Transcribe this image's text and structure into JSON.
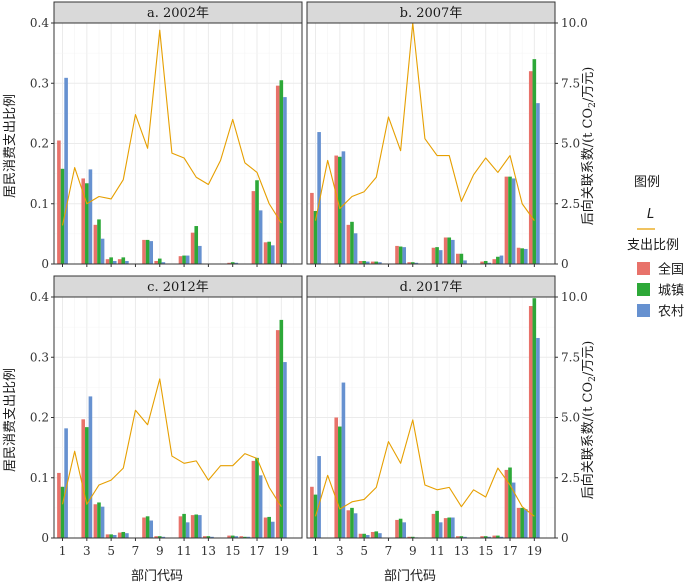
{
  "chart_data": {
    "type": "bar",
    "x_axis_title": "部门代码",
    "y_left_title": "居民消费支出比例",
    "y_right_title": "后向关联系数/(t CO",
    "y_right_title_sub": "2",
    "y_right_title_tail": "/万元)",
    "x_ticks": [
      1,
      3,
      5,
      7,
      9,
      11,
      13,
      15,
      17,
      19
    ],
    "x_range": [
      0.3,
      20.7
    ],
    "y_left_ticks": [
      "0",
      "0.1",
      "0.2",
      "0.3",
      "0.4"
    ],
    "y_left_range": [
      0,
      0.4
    ],
    "y_right_ticks": [
      "0",
      "2.5",
      "5.0",
      "7.5",
      "10.0"
    ],
    "y_right_range": [
      0,
      10
    ],
    "grid": true,
    "legend": {
      "position": "right",
      "line_title": "图例",
      "line_label": "L",
      "line_color": "#E69F00",
      "bar_title": "支出比例",
      "bar_series": [
        {
          "name": "全国",
          "color": "#E8726A"
        },
        {
          "name": "城镇",
          "color": "#2DA838"
        },
        {
          "name": "农村",
          "color": "#6691D0"
        }
      ]
    },
    "panels": [
      {
        "title": "a. 2002年",
        "bars": {
          "全国": [
            0.205,
            0,
            0.142,
            0.065,
            0.008,
            0.008,
            0,
            0.04,
            0.005,
            0,
            0.013,
            0.052,
            0,
            0,
            0.002,
            0,
            0.121,
            0.036,
            0.296
          ],
          "城镇": [
            0.158,
            0,
            0.134,
            0.074,
            0.011,
            0.011,
            0,
            0.04,
            0.009,
            0,
            0.014,
            0.063,
            0,
            0,
            0.003,
            0,
            0.139,
            0.037,
            0.305
          ],
          "农村": [
            0.309,
            0,
            0.157,
            0.042,
            0.005,
            0.005,
            0,
            0.038,
            0.003,
            0,
            0.014,
            0.03,
            0,
            0,
            0.002,
            0,
            0.089,
            0.031,
            0.277
          ]
        },
        "line": [
          1.6,
          4.0,
          2.5,
          2.8,
          2.7,
          3.5,
          6.2,
          4.8,
          9.7,
          4.6,
          4.4,
          3.6,
          3.3,
          4.3,
          6.0,
          4.2,
          3.8,
          2.5,
          1.7
        ]
      },
      {
        "title": "b. 2007年",
        "bars": {
          "全国": [
            0.118,
            0,
            0.18,
            0.065,
            0.005,
            0.004,
            0,
            0.03,
            0.003,
            0,
            0.027,
            0.044,
            0.017,
            0,
            0.004,
            0.008,
            0.145,
            0.027,
            0.32
          ],
          "城镇": [
            0.088,
            0,
            0.178,
            0.07,
            0.005,
            0.004,
            0,
            0.029,
            0.003,
            0,
            0.028,
            0.044,
            0.017,
            0,
            0.005,
            0.012,
            0.145,
            0.026,
            0.34
          ],
          "农村": [
            0.219,
            0,
            0.187,
            0.051,
            0.004,
            0.003,
            0,
            0.028,
            0.002,
            0,
            0.023,
            0.04,
            0.006,
            0,
            0.002,
            0.014,
            0.142,
            0.025,
            0.267
          ]
        },
        "line": [
          1.8,
          4.3,
          2.3,
          2.8,
          3.0,
          3.6,
          6.1,
          4.7,
          10.0,
          5.2,
          4.5,
          4.5,
          2.6,
          3.7,
          4.4,
          3.8,
          4.5,
          2.5,
          1.8
        ]
      },
      {
        "title": "c. 2012年",
        "bars": {
          "全国": [
            0.108,
            0,
            0.197,
            0.056,
            0.006,
            0.009,
            0,
            0.034,
            0.003,
            0,
            0.036,
            0.038,
            0.003,
            0,
            0.004,
            0.003,
            0.128,
            0.034,
            0.345
          ],
          "城镇": [
            0.085,
            0,
            0.184,
            0.059,
            0.006,
            0.01,
            0,
            0.036,
            0.003,
            0,
            0.04,
            0.039,
            0.003,
            0,
            0.004,
            0.002,
            0.133,
            0.035,
            0.362
          ],
          "农村": [
            0.182,
            0,
            0.235,
            0.052,
            0.005,
            0.008,
            0,
            0.029,
            0.002,
            0,
            0.026,
            0.038,
            0.002,
            0,
            0.003,
            0.002,
            0.104,
            0.027,
            0.292
          ]
        },
        "line": [
          1.4,
          3.6,
          1.4,
          2.2,
          2.4,
          2.9,
          5.3,
          4.7,
          6.6,
          3.4,
          3.1,
          3.2,
          2.4,
          3.0,
          3.0,
          3.5,
          3.3,
          2.1,
          1.3
        ]
      },
      {
        "title": "d. 2017年",
        "bars": {
          "全国": [
            0.085,
            0,
            0.2,
            0.046,
            0.007,
            0.01,
            0,
            0.03,
            0.002,
            0,
            0.04,
            0.033,
            0.003,
            0,
            0.003,
            0.004,
            0.113,
            0.05,
            0.385
          ],
          "城镇": [
            0.072,
            0,
            0.185,
            0.05,
            0.007,
            0.011,
            0,
            0.032,
            0.002,
            0,
            0.045,
            0.034,
            0.003,
            0,
            0.003,
            0.004,
            0.117,
            0.05,
            0.398
          ],
          "农村": [
            0.136,
            0,
            0.258,
            0.041,
            0.005,
            0.008,
            0,
            0.026,
            0.001,
            0,
            0.026,
            0.034,
            0.002,
            0,
            0.002,
            0.002,
            0.092,
            0.048,
            0.332
          ]
        },
        "line": [
          0.9,
          2.6,
          1.2,
          1.5,
          1.6,
          2.1,
          4.0,
          3.1,
          4.9,
          2.2,
          2.0,
          2.1,
          1.3,
          2.0,
          1.7,
          2.9,
          2.2,
          1.3,
          0.9
        ]
      }
    ]
  }
}
